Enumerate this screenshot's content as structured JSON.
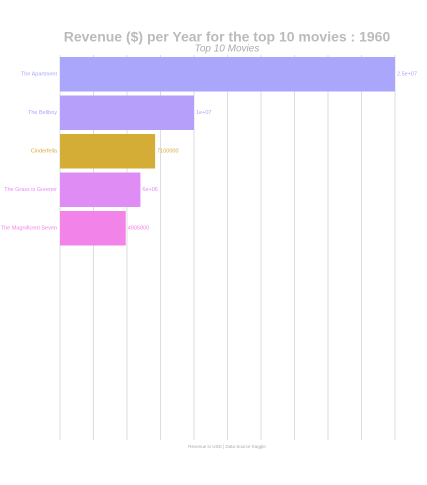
{
  "chart_data": {
    "type": "bar",
    "orientation": "horizontal",
    "title": "Revenue ($) per Year for the top 10 movies : 1960",
    "subtitle": "Top 10 Movies",
    "caption": "Revenue in USD | Data Source Kaggle",
    "categories": [
      "The Apartment",
      "The Bellboy",
      "Cinderfella",
      "The Grass is Greener",
      "The Magnificent Seven"
    ],
    "values": [
      25000000,
      10000000,
      7100000,
      6000000,
      4905000
    ],
    "value_labels": [
      "2.5e+07",
      "1e+07",
      "7100000",
      "6e+06",
      "4905000"
    ],
    "colors": [
      "#aaa6fb",
      "#b69ffb",
      "#d3ad36",
      "#e08cf5",
      "#f283e8"
    ],
    "slots": 10,
    "xlim": [
      0,
      25000000
    ],
    "xticks": [
      0,
      2500000,
      5000000,
      7500000,
      10000000,
      12500000,
      15000000,
      17500000,
      20000000,
      22500000,
      25000000
    ],
    "grid": true
  }
}
